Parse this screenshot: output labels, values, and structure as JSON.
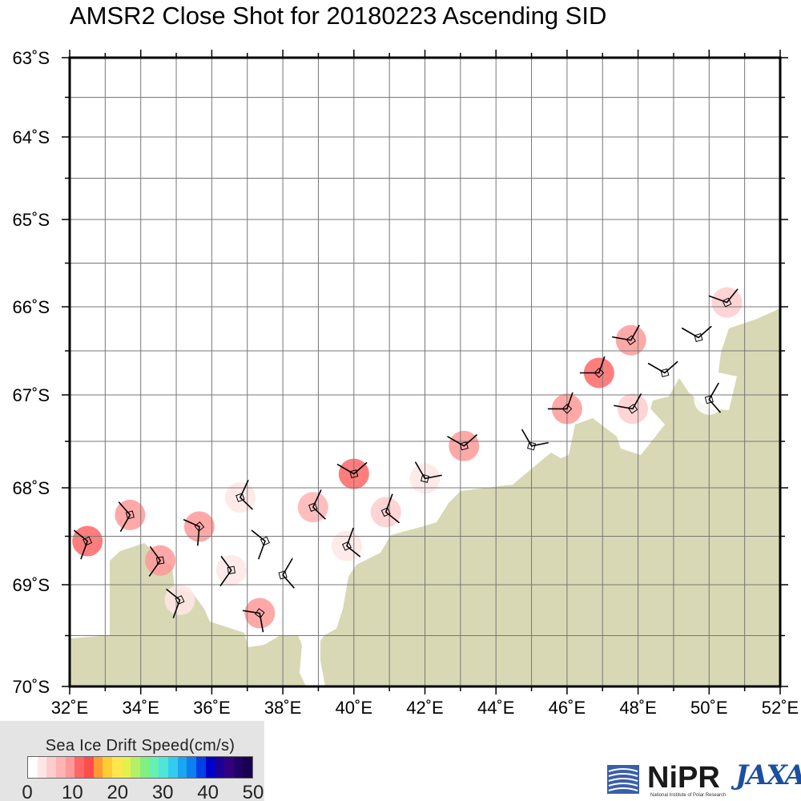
{
  "title": "AMSR2 Close Shot for 20180223 Ascending SID",
  "map": {
    "lon_labels": [
      "32˚E",
      "34˚E",
      "36˚E",
      "38˚E",
      "40˚E",
      "42˚E",
      "44˚E",
      "46˚E",
      "48˚E",
      "50˚E",
      "52˚E"
    ],
    "lat_labels": [
      "63˚S",
      "64˚S",
      "65˚S",
      "66˚S",
      "67˚S",
      "68˚S",
      "69˚S",
      "70˚S"
    ],
    "lon_range": [
      32,
      52
    ],
    "lat_range": [
      63,
      70
    ],
    "grid": true,
    "land_color": "#d8d8b5",
    "grid_color": "#777777",
    "frame_color": "#000000"
  },
  "drift_points": [
    {
      "lon": 32.5,
      "lat": 68.55,
      "speed": 10,
      "deg": 200
    },
    {
      "lon": 33.7,
      "lat": 68.28,
      "speed": 9,
      "deg": 210
    },
    {
      "lon": 34.55,
      "lat": 68.75,
      "speed": 8,
      "deg": 215
    },
    {
      "lon": 35.1,
      "lat": 69.15,
      "speed": 3,
      "deg": 200
    },
    {
      "lon": 35.65,
      "lat": 68.4,
      "speed": 8,
      "deg": 185
    },
    {
      "lon": 36.55,
      "lat": 68.85,
      "speed": 3,
      "deg": 215
    },
    {
      "lon": 36.8,
      "lat": 68.1,
      "speed": 3,
      "deg": 25
    },
    {
      "lon": 37.5,
      "lat": 68.55,
      "speed": 0,
      "deg": 200
    },
    {
      "lon": 37.35,
      "lat": 69.28,
      "speed": 8,
      "deg": 170
    },
    {
      "lon": 38.0,
      "lat": 68.9,
      "speed": 0,
      "deg": 30
    },
    {
      "lon": 38.85,
      "lat": 68.2,
      "speed": 6,
      "deg": 25
    },
    {
      "lon": 39.8,
      "lat": 68.6,
      "speed": 2,
      "deg": 20
    },
    {
      "lon": 40.0,
      "lat": 67.85,
      "speed": 11,
      "deg": 300
    },
    {
      "lon": 40.9,
      "lat": 68.25,
      "speed": 5,
      "deg": 20
    },
    {
      "lon": 42.0,
      "lat": 67.9,
      "speed": 2,
      "deg": 330
    },
    {
      "lon": 43.1,
      "lat": 67.55,
      "speed": 8,
      "deg": 300
    },
    {
      "lon": 45.0,
      "lat": 67.55,
      "speed": 1,
      "deg": 330
    },
    {
      "lon": 46.0,
      "lat": 67.15,
      "speed": 8,
      "deg": 270
    },
    {
      "lon": 46.9,
      "lat": 66.75,
      "speed": 10,
      "deg": 270
    },
    {
      "lon": 47.8,
      "lat": 66.38,
      "speed": 8,
      "deg": 280
    },
    {
      "lon": 47.85,
      "lat": 67.15,
      "speed": 4,
      "deg": 280
    },
    {
      "lon": 48.75,
      "lat": 66.75,
      "speed": 1,
      "deg": 300
    },
    {
      "lon": 49.7,
      "lat": 66.35,
      "speed": 1,
      "deg": 300
    },
    {
      "lon": 50.0,
      "lat": 67.05,
      "speed": 0,
      "deg": 30
    },
    {
      "lon": 50.5,
      "lat": 65.95,
      "speed": 5,
      "deg": 290
    }
  ],
  "legend": {
    "title": "Sea Ice Drift Speed(cm/s)",
    "ticks": [
      "0",
      "10",
      "20",
      "30",
      "40",
      "50"
    ],
    "colors": [
      "#ffffff",
      "#ffe6e6",
      "#ffcccc",
      "#ffb3b3",
      "#ff9999",
      "#ff6666",
      "#ff4d4d",
      "#ff9933",
      "#ffcc33",
      "#ffe64d",
      "#e6f04d",
      "#b3f066",
      "#80f080",
      "#66f0b3",
      "#4de6d9",
      "#33ccf0",
      "#1aa6f0",
      "#0d80f0",
      "#0040e6",
      "#0000cc",
      "#1a0099",
      "#330080",
      "#220066",
      "#1a0050"
    ]
  },
  "logos": {
    "nipr": "NiPR",
    "nipr_sub": "National Institute of Polar Research",
    "jaxa": "JAXA"
  }
}
